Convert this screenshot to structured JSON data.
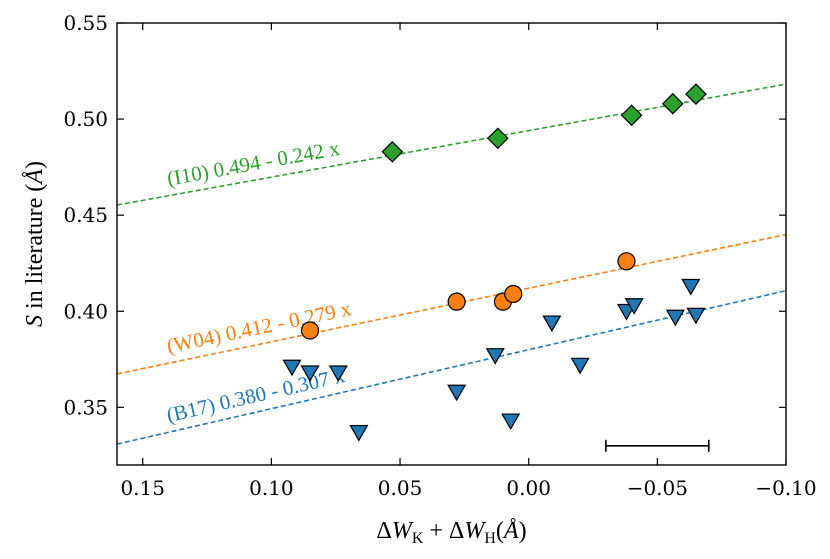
{
  "chart_data": {
    "type": "scatter",
    "title": "",
    "xlabel": "ΔW_K + ΔW_H(Å)",
    "ylabel": "S in literature (Å)",
    "xlim": [
      0.16,
      -0.1
    ],
    "ylim": [
      0.32,
      0.55
    ],
    "x_ticks": [
      0.15,
      0.1,
      0.05,
      0.0,
      -0.05,
      -0.1
    ],
    "x_tick_labels": [
      "0.15",
      "0.10",
      "0.05",
      "0.00",
      "−0.05",
      "−0.10"
    ],
    "y_ticks": [
      0.35,
      0.4,
      0.45,
      0.5,
      0.55
    ],
    "y_tick_labels": [
      "0.35",
      "0.40",
      "0.45",
      "0.50",
      "0.55"
    ],
    "colors": {
      "green": "#2ca02c",
      "orange": "#ff7f0e",
      "blue": "#1f77b4"
    },
    "series": [
      {
        "name": "I10",
        "marker": "diamond",
        "color": "#2ca02c",
        "fit": {
          "intercept": 0.494,
          "slope": -0.242,
          "label": "(I10) 0.494 - 0.242 x"
        },
        "points": [
          {
            "x": 0.053,
            "y": 0.483
          },
          {
            "x": 0.012,
            "y": 0.49
          },
          {
            "x": -0.04,
            "y": 0.502
          },
          {
            "x": -0.056,
            "y": 0.508
          },
          {
            "x": -0.065,
            "y": 0.513
          }
        ]
      },
      {
        "name": "W04",
        "marker": "circle",
        "color": "#ff7f0e",
        "fit": {
          "intercept": 0.412,
          "slope": -0.279,
          "label": "(W04) 0.412 - 0.279 x"
        },
        "points": [
          {
            "x": 0.085,
            "y": 0.39
          },
          {
            "x": 0.028,
            "y": 0.405
          },
          {
            "x": 0.01,
            "y": 0.405
          },
          {
            "x": 0.006,
            "y": 0.409
          },
          {
            "x": -0.038,
            "y": 0.426
          }
        ]
      },
      {
        "name": "B17",
        "marker": "triangle-down",
        "color": "#1f77b4",
        "fit": {
          "intercept": 0.38,
          "slope": -0.307,
          "label": "(B17) 0.380 - 0.307 x"
        },
        "points": [
          {
            "x": 0.092,
            "y": 0.371
          },
          {
            "x": 0.085,
            "y": 0.368
          },
          {
            "x": 0.074,
            "y": 0.368
          },
          {
            "x": 0.066,
            "y": 0.337
          },
          {
            "x": 0.028,
            "y": 0.358
          },
          {
            "x": 0.013,
            "y": 0.377
          },
          {
            "x": 0.007,
            "y": 0.343
          },
          {
            "x": -0.009,
            "y": 0.394
          },
          {
            "x": -0.02,
            "y": 0.372
          },
          {
            "x": -0.038,
            "y": 0.4
          },
          {
            "x": -0.041,
            "y": 0.403
          },
          {
            "x": -0.057,
            "y": 0.397
          },
          {
            "x": -0.063,
            "y": 0.413
          },
          {
            "x": -0.065,
            "y": 0.398
          }
        ]
      }
    ],
    "error_bar": {
      "x_from": -0.03,
      "x_to": -0.07,
      "y": 0.33
    }
  }
}
